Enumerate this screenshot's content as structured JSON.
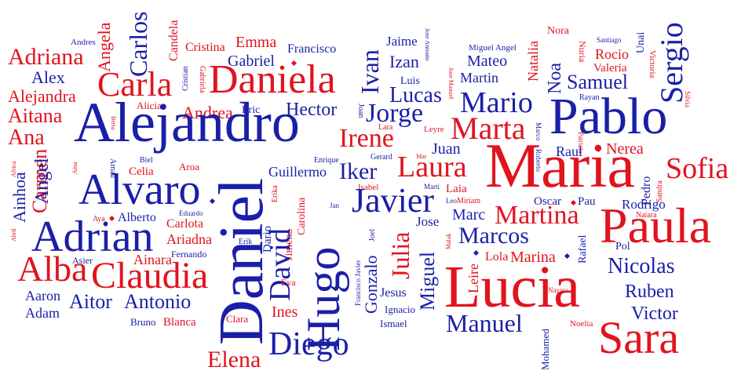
{
  "colors": {
    "red": "#e0141e",
    "blue": "#1a1fa8",
    "background": "#ffffff"
  },
  "words": [
    "Andres",
    "Adriana",
    "Angela",
    "Carlos",
    "Candela",
    "Cristina",
    "Emma",
    "Francisco",
    "Gabriel",
    "Jaime",
    "Jose Antonio",
    "Izan",
    "Ivan",
    "Sergio",
    "Unai",
    "Santiago",
    "Nora",
    "Miguel Angel",
    "Mateo",
    "Natalia",
    "Nuria",
    "Victoria",
    "Rocio",
    "Valeria",
    "Alex",
    "Alejandra",
    "Carla",
    "Cristian",
    "Gabriela",
    "Daniela",
    "Luis",
    "Lucas",
    "Jose Manuel",
    "Martin",
    "Noa",
    "Samuel",
    "Rayan",
    "Silvia",
    "Aitana",
    "Alicia",
    "Andrea",
    "Eric",
    "Hector",
    "Joan",
    "Jorge",
    "Mario",
    "Pablo",
    "Ana",
    "Alejandro",
    "Lara",
    "Irene",
    "Leyre",
    "Marta",
    "Marco",
    "Roberto",
    "Patricia",
    "Raul",
    "Nerea",
    "Carmen",
    "Berta",
    "Juan",
    "Maria",
    "Sofia",
    "Africa",
    "Aina",
    "Arnau",
    "Biel",
    "Celia",
    "Aroa",
    "Enrique",
    "Guillermo",
    "Gerard",
    "Iker",
    "Laura",
    "Pedro",
    "Sandra",
    "Ainhoa",
    "Angel",
    "Alvaro",
    "Daniel",
    "Erika",
    "Jimena",
    "Carolina",
    "Jan",
    "Isabel",
    "Javier",
    "Marti",
    "Laia",
    "Mar",
    "Leo",
    "Miriam",
    "Oscar",
    "Pau",
    "Rodrigo",
    "Naiara",
    "Abril",
    "Aya",
    "Alberto",
    "Eduardo",
    "Carlota",
    "Ariadna",
    "Marc",
    "Martina",
    "Paula",
    "Adrian",
    "Joel",
    "Julia",
    "Jose",
    "Marcos",
    "Erik",
    "Dario",
    "David",
    "Francisco Javier",
    "Malak",
    "Fernando",
    "Pol",
    "Rafael",
    "Asier",
    "Ainara",
    "Alba",
    "Claudia",
    "Gonzalo",
    "Miguel",
    "Leire",
    "Lola",
    "Marina",
    "Nicolas",
    "Aaron",
    "Antonio",
    "Eva",
    "Hugo",
    "Lucia",
    "Jesus",
    "Nayara",
    "Ruben",
    "Aitor",
    "Adam",
    "Ines",
    "Ignacio",
    "Victor",
    "Bruno",
    "Blanca",
    "Clara",
    "Ismael",
    "Manuel",
    "Mohamed",
    "Noelia",
    "Diego",
    "Sara",
    "Elena"
  ]
}
